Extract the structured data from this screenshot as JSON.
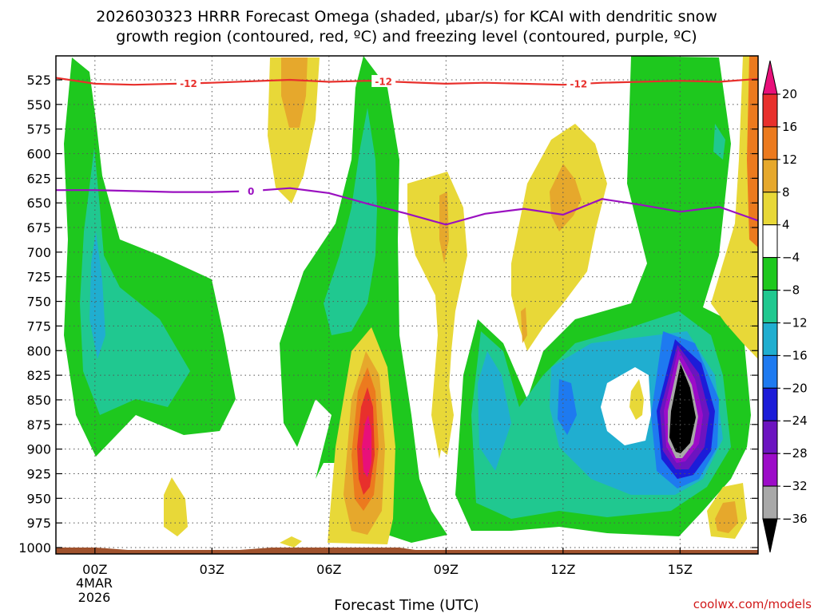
{
  "chart_data": {
    "type": "heatmap",
    "title_line1": "2026030323 HRRR Forecast Omega (shaded, μbar/s) for KCAI with dendritic snow",
    "title_line2": "growth region (contoured, red, ºC) and freezing level (contoured, purple, ºC)",
    "xlabel": "Forecast Time (UTC)",
    "credit": "coolwx.com/models",
    "x_hours": [
      -1,
      17
    ],
    "x_ticks": [
      {
        "hour": 0,
        "label": "00Z"
      },
      {
        "hour": 3,
        "label": "03Z"
      },
      {
        "hour": 6,
        "label": "06Z"
      },
      {
        "hour": 9,
        "label": "09Z"
      },
      {
        "hour": 12,
        "label": "12Z"
      },
      {
        "hour": 15,
        "label": "15Z"
      }
    ],
    "date_label": [
      "4MAR",
      "2026"
    ],
    "y_ticks": [
      525,
      550,
      575,
      600,
      625,
      650,
      675,
      700,
      725,
      750,
      775,
      800,
      825,
      850,
      875,
      900,
      925,
      950,
      975,
      1000
    ],
    "colorbar": {
      "labels": [
        "20",
        "16",
        "12",
        "8",
        "4",
        "−4",
        "−8",
        "−12",
        "−16",
        "−20",
        "−24",
        "−28",
        "−32",
        "−36"
      ],
      "colors": [
        "#e8107a",
        "#e8302c",
        "#ec7a1e",
        "#e6a82c",
        "#e8d838",
        "#ffffff",
        "#1ec81e",
        "#20c890",
        "#20aed0",
        "#1e7af0",
        "#1c1cd8",
        "#6c14c0",
        "#9c0cc8",
        "#a8a8a8",
        "#000000"
      ]
    },
    "isotherm_minus12": {
      "color": "#e8302c",
      "label": "-12",
      "label_hours": [
        2.4,
        7.4,
        12.4
      ],
      "points": [
        [
          -1,
          523
        ],
        [
          0,
          529
        ],
        [
          1,
          530
        ],
        [
          3,
          528
        ],
        [
          5,
          525
        ],
        [
          6,
          527
        ],
        [
          7,
          526
        ],
        [
          9,
          529
        ],
        [
          10,
          528
        ],
        [
          12,
          530
        ],
        [
          13,
          528
        ],
        [
          15,
          526
        ],
        [
          16,
          527
        ],
        [
          17,
          524
        ]
      ]
    },
    "isotherm_zero": {
      "color": "#9a10c0",
      "label": "0",
      "label_hours": [
        4
      ],
      "points": [
        [
          -1,
          637
        ],
        [
          0,
          637
        ],
        [
          1,
          638
        ],
        [
          2,
          639
        ],
        [
          3,
          639
        ],
        [
          4,
          638
        ],
        [
          5,
          635
        ],
        [
          6,
          640
        ],
        [
          7,
          651
        ],
        [
          8,
          661
        ],
        [
          9,
          672
        ],
        [
          10,
          661
        ],
        [
          11,
          656
        ],
        [
          12,
          662
        ],
        [
          13,
          646
        ],
        [
          14,
          652
        ],
        [
          15,
          659
        ],
        [
          16,
          654
        ],
        [
          17,
          668
        ]
      ]
    }
  }
}
